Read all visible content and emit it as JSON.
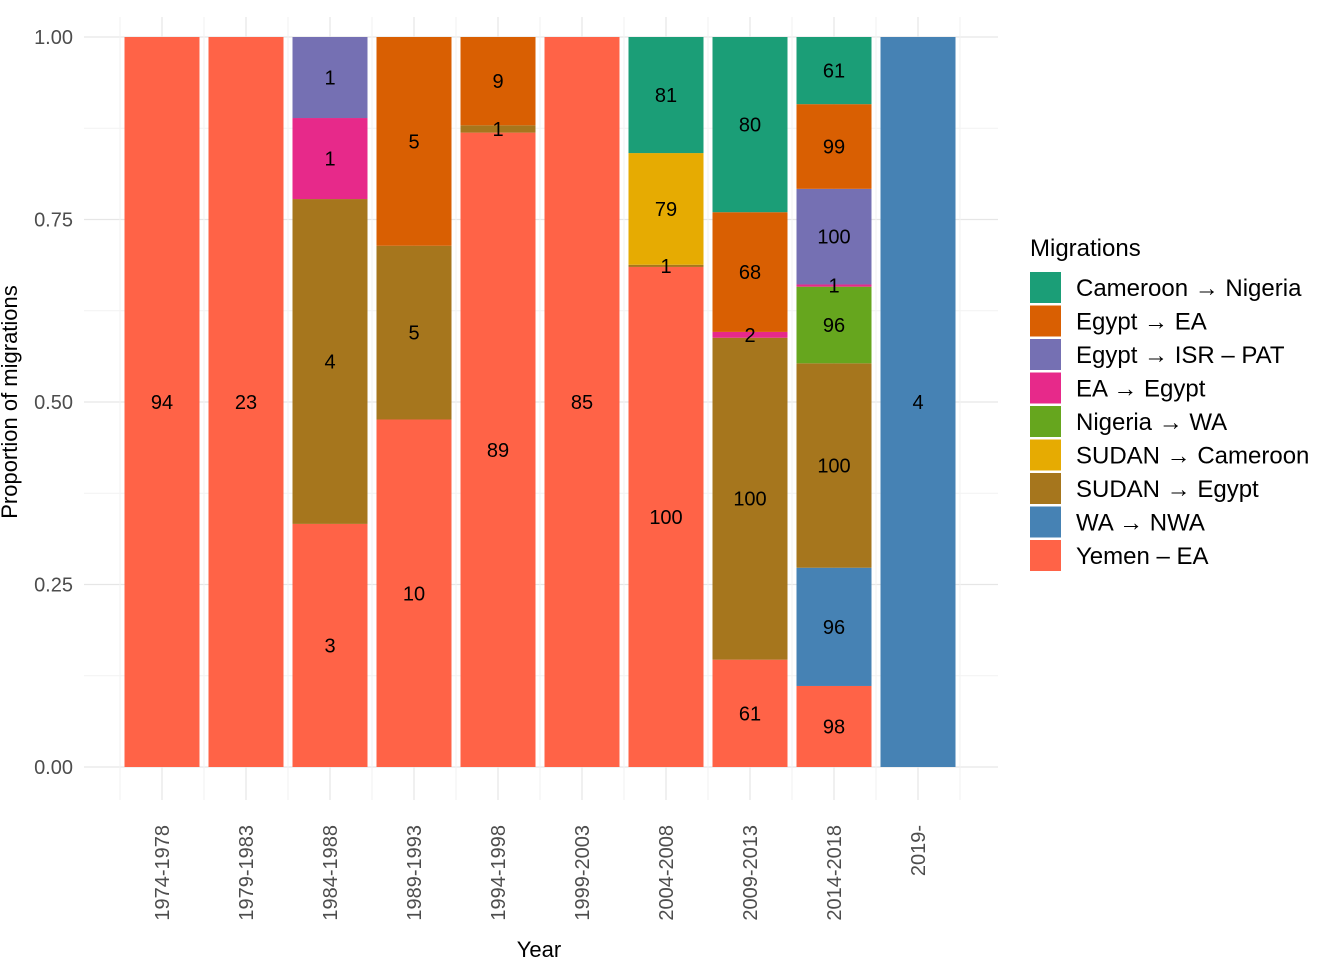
{
  "chart_data": {
    "type": "bar",
    "stacked": true,
    "xlabel": "Year",
    "ylabel": "Proportion of migrations",
    "ylim": [
      0,
      1
    ],
    "y_ticks": [
      "0.00",
      "0.25",
      "0.50",
      "0.75",
      "1.00"
    ],
    "grid": true,
    "legend_position": "right",
    "legend_title": "Migrations",
    "categories": [
      "1974-1978",
      "1979-1983",
      "1984-1988",
      "1989-1993",
      "1994-1998",
      "1999-2003",
      "2004-2008",
      "2009-2013",
      "2014-2018",
      "2019-"
    ],
    "series_info": [
      {
        "name": "Cameroon → Nigeria",
        "color": "#1B9E77"
      },
      {
        "name": "Egypt → EA",
        "color": "#D95F02"
      },
      {
        "name": "Egypt → ISR – PAT",
        "color": "#7570B3"
      },
      {
        "name": "EA → Egypt",
        "color": "#E7298A"
      },
      {
        "name": "Nigeria → WA",
        "color": "#66A61E"
      },
      {
        "name": "SUDAN → Cameroon",
        "color": "#E6AB02"
      },
      {
        "name": "SUDAN → Egypt",
        "color": "#A6761D"
      },
      {
        "name": "WA → NWA",
        "color": "#4682B4"
      },
      {
        "name": "Yemen – EA",
        "color": "#FF6347"
      }
    ],
    "stacks": [
      [
        {
          "series": 8,
          "value": 1.0,
          "label": "94"
        }
      ],
      [
        {
          "series": 8,
          "value": 1.0,
          "label": "23"
        }
      ],
      [
        {
          "series": 8,
          "value": 0.333,
          "label": "3"
        },
        {
          "series": 6,
          "value": 0.445,
          "label": "4"
        },
        {
          "series": 3,
          "value": 0.111,
          "label": "1"
        },
        {
          "series": 2,
          "value": 0.111,
          "label": "1"
        }
      ],
      [
        {
          "series": 8,
          "value": 0.476,
          "label": "10"
        },
        {
          "series": 6,
          "value": 0.238,
          "label": "5"
        },
        {
          "series": 1,
          "value": 0.286,
          "label": "5"
        }
      ],
      [
        {
          "series": 8,
          "value": 0.869,
          "label": "89"
        },
        {
          "series": 6,
          "value": 0.01,
          "label": "1"
        },
        {
          "series": 1,
          "value": 0.121,
          "label": "9"
        }
      ],
      [
        {
          "series": 8,
          "value": 1.0,
          "label": "85"
        }
      ],
      [
        {
          "series": 8,
          "value": 0.685,
          "label": "100"
        },
        {
          "series": 6,
          "value": 0.003,
          "label": "1"
        },
        {
          "series": 5,
          "value": 0.153,
          "label": "79"
        },
        {
          "series": 0,
          "value": 0.159,
          "label": "81"
        }
      ],
      [
        {
          "series": 8,
          "value": 0.147,
          "label": "61"
        },
        {
          "series": 6,
          "value": 0.441,
          "label": "100"
        },
        {
          "series": 3,
          "value": 0.008,
          "label": "2"
        },
        {
          "series": 1,
          "value": 0.164,
          "label": "68"
        },
        {
          "series": 0,
          "value": 0.24,
          "label": "80"
        }
      ],
      [
        {
          "series": 8,
          "value": 0.111,
          "label": "98"
        },
        {
          "series": 7,
          "value": 0.162,
          "label": "96"
        },
        {
          "series": 6,
          "value": 0.28,
          "label": "100"
        },
        {
          "series": 4,
          "value": 0.105,
          "label": "96"
        },
        {
          "series": 3,
          "value": 0.003,
          "label": "1"
        },
        {
          "series": 2,
          "value": 0.131,
          "label": "100"
        },
        {
          "series": 1,
          "value": 0.116,
          "label": "99"
        },
        {
          "series": 0,
          "value": 0.092,
          "label": "61"
        }
      ],
      [
        {
          "series": 7,
          "value": 1.0,
          "label": "4"
        }
      ]
    ]
  }
}
